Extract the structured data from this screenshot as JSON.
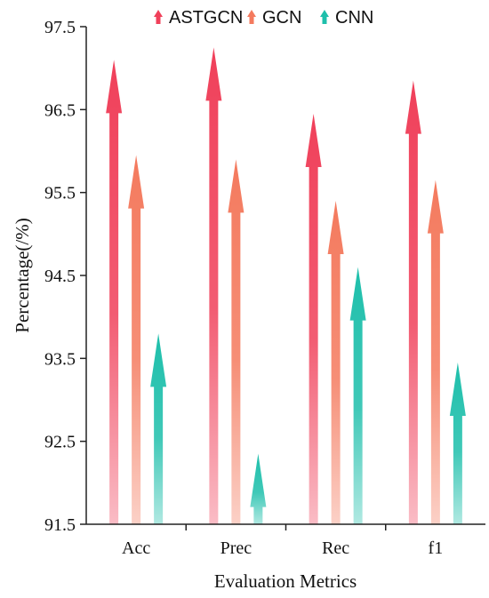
{
  "chart_data": {
    "type": "bar",
    "style": "arrow bars with vertical gradient",
    "title": "",
    "xlabel": "Evaluation Metrics",
    "ylabel": "Percentage(/%)",
    "categories": [
      "Acc",
      "Prec",
      "Rec",
      "f1"
    ],
    "ylim": [
      91.5,
      97.5
    ],
    "yticks": [
      "91.5",
      "92.5",
      "93.5",
      "94.5",
      "95.5",
      "96.5",
      "97.5"
    ],
    "legend_position": "top",
    "grid": false,
    "series": [
      {
        "name": "ASTGCN",
        "color": "#f0405a",
        "values": [
          97.1,
          97.25,
          96.45,
          96.85
        ]
      },
      {
        "name": "GCN",
        "color": "#f47a5e",
        "values": [
          95.95,
          95.9,
          95.4,
          95.65
        ]
      },
      {
        "name": "CNN",
        "color": "#1ebfab",
        "values": [
          93.8,
          92.35,
          94.6,
          93.45
        ]
      }
    ]
  }
}
